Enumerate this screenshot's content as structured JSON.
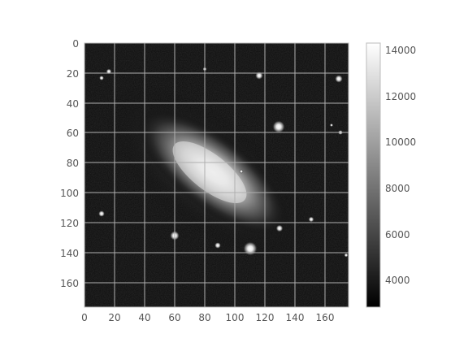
{
  "image_axes": {
    "x_ticks": [
      "0",
      "20",
      "40",
      "60",
      "80",
      "100",
      "120",
      "140",
      "160"
    ],
    "y_ticks": [
      "0",
      "20",
      "40",
      "60",
      "80",
      "100",
      "120",
      "140",
      "160"
    ],
    "xlim": [
      0,
      176
    ],
    "ylim": [
      176,
      0
    ],
    "grid": true
  },
  "colorbar": {
    "colormap": "gray",
    "range": [
      2800,
      14300
    ],
    "ticks": [
      "4000",
      "6000",
      "8000",
      "10000",
      "12000",
      "14000"
    ]
  },
  "colors": {
    "grid": "#b0b0b0",
    "frame": "#bcbcbc",
    "text": "#555555"
  }
}
